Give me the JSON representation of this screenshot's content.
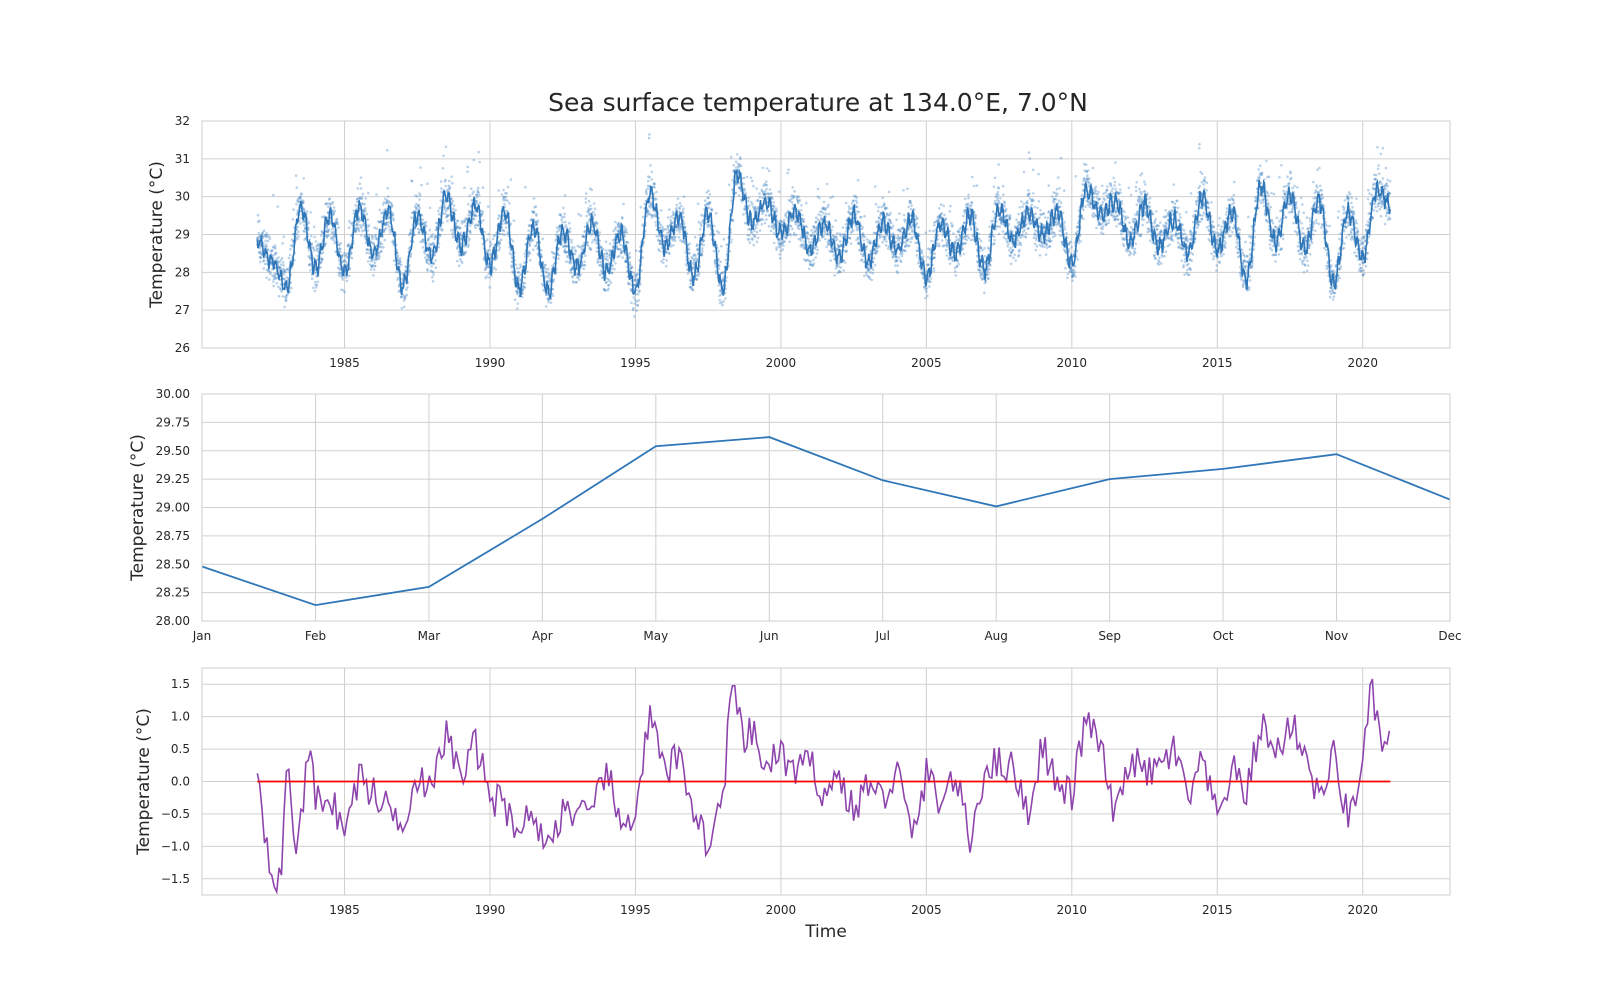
{
  "figure": {
    "title": "Sea surface temperature at 134.0°E, 7.0°N",
    "colors": {
      "raw_points": "#3a7dbf",
      "smooth_line": "#2f77b8",
      "climatology": "#2f77b8",
      "anomaly": "#8e44ad",
      "zero_line": "#ff0000",
      "grid": "#d0d0d0",
      "frame": "#cfcfcf"
    }
  },
  "chart_data": [
    {
      "type": "scatter",
      "title": "Sea surface temperature at 134.0°E, 7.0°N",
      "xlabel": "",
      "ylabel": "Temperature (°C)",
      "xlim": [
        1980.1,
        2023.0
      ],
      "ylim": [
        26,
        32
      ],
      "xticks": [
        1985,
        1990,
        1995,
        2000,
        2005,
        2010,
        2015,
        2020
      ],
      "yticks": [
        26,
        27,
        28,
        29,
        30,
        31,
        32
      ],
      "grid": true,
      "x_range": [
        1982.0,
        2020.95
      ],
      "description_series": [
        {
          "name": "",
          "kind": "daily points"
        },
        {
          "name": "",
          "kind": "smoothed line"
        }
      ],
      "smooth_series": {
        "x": [
          1982.0,
          1982.5,
          1983.0,
          1983.5,
          1984.0,
          1984.5,
          1985.0,
          1985.5,
          1986.0,
          1986.5,
          1987.0,
          1987.5,
          1988.0,
          1988.5,
          1989.0,
          1989.5,
          1990.0,
          1990.5,
          1991.0,
          1991.5,
          1992.0,
          1992.5,
          1993.0,
          1993.5,
          1994.0,
          1994.5,
          1995.0,
          1995.5,
          1996.0,
          1996.5,
          1997.0,
          1997.5,
          1998.0,
          1998.5,
          1999.0,
          1999.5,
          2000.0,
          2000.5,
          2001.0,
          2001.5,
          2002.0,
          2002.5,
          2003.0,
          2003.5,
          2004.0,
          2004.5,
          2005.0,
          2005.5,
          2006.0,
          2006.5,
          2007.0,
          2007.5,
          2008.0,
          2008.5,
          2009.0,
          2009.5,
          2010.0,
          2010.5,
          2011.0,
          2011.5,
          2012.0,
          2012.5,
          2013.0,
          2013.5,
          2014.0,
          2014.5,
          2015.0,
          2015.5,
          2016.0,
          2016.5,
          2017.0,
          2017.5,
          2018.0,
          2018.5,
          2019.0,
          2019.5,
          2020.0,
          2020.5,
          2020.95
        ],
        "y": [
          28.8,
          28.3,
          27.6,
          29.7,
          28.1,
          29.5,
          28.0,
          29.7,
          28.5,
          29.6,
          27.6,
          29.5,
          28.4,
          30.0,
          28.7,
          29.8,
          28.2,
          29.6,
          27.6,
          29.2,
          27.5,
          29.1,
          28.1,
          29.3,
          28.0,
          29.0,
          27.5,
          30.1,
          28.7,
          29.5,
          27.9,
          29.6,
          27.6,
          30.6,
          29.3,
          29.9,
          29.0,
          29.6,
          28.6,
          29.3,
          28.4,
          29.5,
          28.3,
          29.3,
          28.6,
          29.4,
          27.9,
          29.3,
          28.5,
          29.5,
          28.1,
          29.7,
          28.8,
          29.6,
          29.0,
          29.6,
          28.2,
          30.2,
          29.5,
          29.9,
          28.8,
          29.8,
          28.7,
          29.4,
          28.5,
          30.0,
          28.6,
          29.6,
          27.8,
          30.3,
          28.8,
          30.1,
          28.6,
          29.9,
          27.7,
          29.6,
          28.4,
          30.2,
          29.8
        ]
      }
    },
    {
      "type": "line",
      "title": "",
      "xlabel": "",
      "ylabel": "Temperature (°C)",
      "categories": [
        "Jan",
        "Feb",
        "Mar",
        "Apr",
        "May",
        "Jun",
        "Jul",
        "Aug",
        "Sep",
        "Oct",
        "Nov",
        "Dec"
      ],
      "values": [
        28.48,
        28.14,
        28.3,
        28.9,
        29.54,
        29.62,
        29.24,
        29.01,
        29.25,
        29.34,
        29.47,
        29.07
      ],
      "ylim": [
        28.0,
        30.0
      ],
      "yticks": [
        "28.00",
        "28.25",
        "28.50",
        "28.75",
        "29.00",
        "29.25",
        "29.50",
        "29.75",
        "30.00"
      ],
      "grid": true
    },
    {
      "type": "line",
      "title": "",
      "xlabel": "Time",
      "ylabel": "Temperature (°C)",
      "xlim": [
        1980.1,
        2023.0
      ],
      "ylim": [
        -1.75,
        1.75
      ],
      "xticks": [
        1985,
        1990,
        1995,
        2000,
        2005,
        2010,
        2015,
        2020
      ],
      "yticks": [
        "−1.5",
        "−1.0",
        "−0.5",
        "0.0",
        "0.5",
        "1.0",
        "1.5"
      ],
      "ytick_values": [
        -1.5,
        -1.0,
        -0.5,
        0.0,
        0.5,
        1.0,
        1.5
      ],
      "grid": true,
      "series": [
        {
          "name": "",
          "x": [
            1982.0,
            1982.3,
            1982.5,
            1982.8,
            1983.0,
            1983.3,
            1983.5,
            1983.8,
            1984.0,
            1984.5,
            1985.0,
            1985.5,
            1986.0,
            1986.5,
            1987.0,
            1987.5,
            1988.0,
            1988.5,
            1989.0,
            1989.5,
            1990.0,
            1990.5,
            1991.0,
            1991.5,
            1992.0,
            1992.5,
            1993.0,
            1993.5,
            1994.0,
            1994.5,
            1995.0,
            1995.5,
            1996.0,
            1996.5,
            1997.0,
            1997.5,
            1998.0,
            1998.3,
            1998.7,
            1999.0,
            1999.5,
            2000.0,
            2000.5,
            2001.0,
            2001.5,
            2002.0,
            2002.5,
            2003.0,
            2003.5,
            2004.0,
            2004.5,
            2005.0,
            2005.5,
            2006.0,
            2006.5,
            2007.0,
            2007.5,
            2008.0,
            2008.5,
            2009.0,
            2009.5,
            2010.0,
            2010.5,
            2011.0,
            2011.5,
            2012.0,
            2012.5,
            2013.0,
            2013.5,
            2014.0,
            2014.5,
            2015.0,
            2015.5,
            2016.0,
            2016.5,
            2017.0,
            2017.5,
            2018.0,
            2018.5,
            2019.0,
            2019.5,
            2020.0,
            2020.3,
            2020.7,
            2020.95
          ],
          "values": [
            0.3,
            -0.9,
            -1.3,
            -1.65,
            0.3,
            -1.0,
            -0.5,
            0.5,
            -0.3,
            -0.2,
            -0.8,
            0.1,
            -0.2,
            -0.4,
            -0.6,
            0.1,
            -0.2,
            0.8,
            0.0,
            0.6,
            -0.2,
            -0.4,
            -0.7,
            -0.5,
            -1.05,
            -0.4,
            -0.5,
            -0.6,
            0.25,
            -0.8,
            -0.4,
            1.0,
            0.1,
            0.4,
            -0.4,
            -1.0,
            -0.3,
            1.55,
            0.6,
            0.75,
            0.2,
            0.45,
            0.1,
            0.3,
            -0.2,
            0.1,
            -0.5,
            0.0,
            -0.3,
            0.2,
            -0.9,
            0.1,
            -0.3,
            0.1,
            -0.95,
            0.2,
            0.3,
            0.2,
            -0.5,
            0.6,
            -0.1,
            -0.2,
            1.0,
            0.5,
            -0.6,
            0.4,
            0.1,
            0.2,
            0.5,
            -0.3,
            0.3,
            -0.6,
            0.2,
            -0.2,
            0.9,
            0.4,
            0.9,
            0.5,
            -0.3,
            0.4,
            -0.6,
            0.3,
            1.4,
            0.5,
            0.6
          ]
        },
        {
          "name": "",
          "kind": "zero line",
          "x": [
            1982.0,
            2020.95
          ],
          "values": [
            0,
            0
          ]
        }
      ]
    }
  ]
}
